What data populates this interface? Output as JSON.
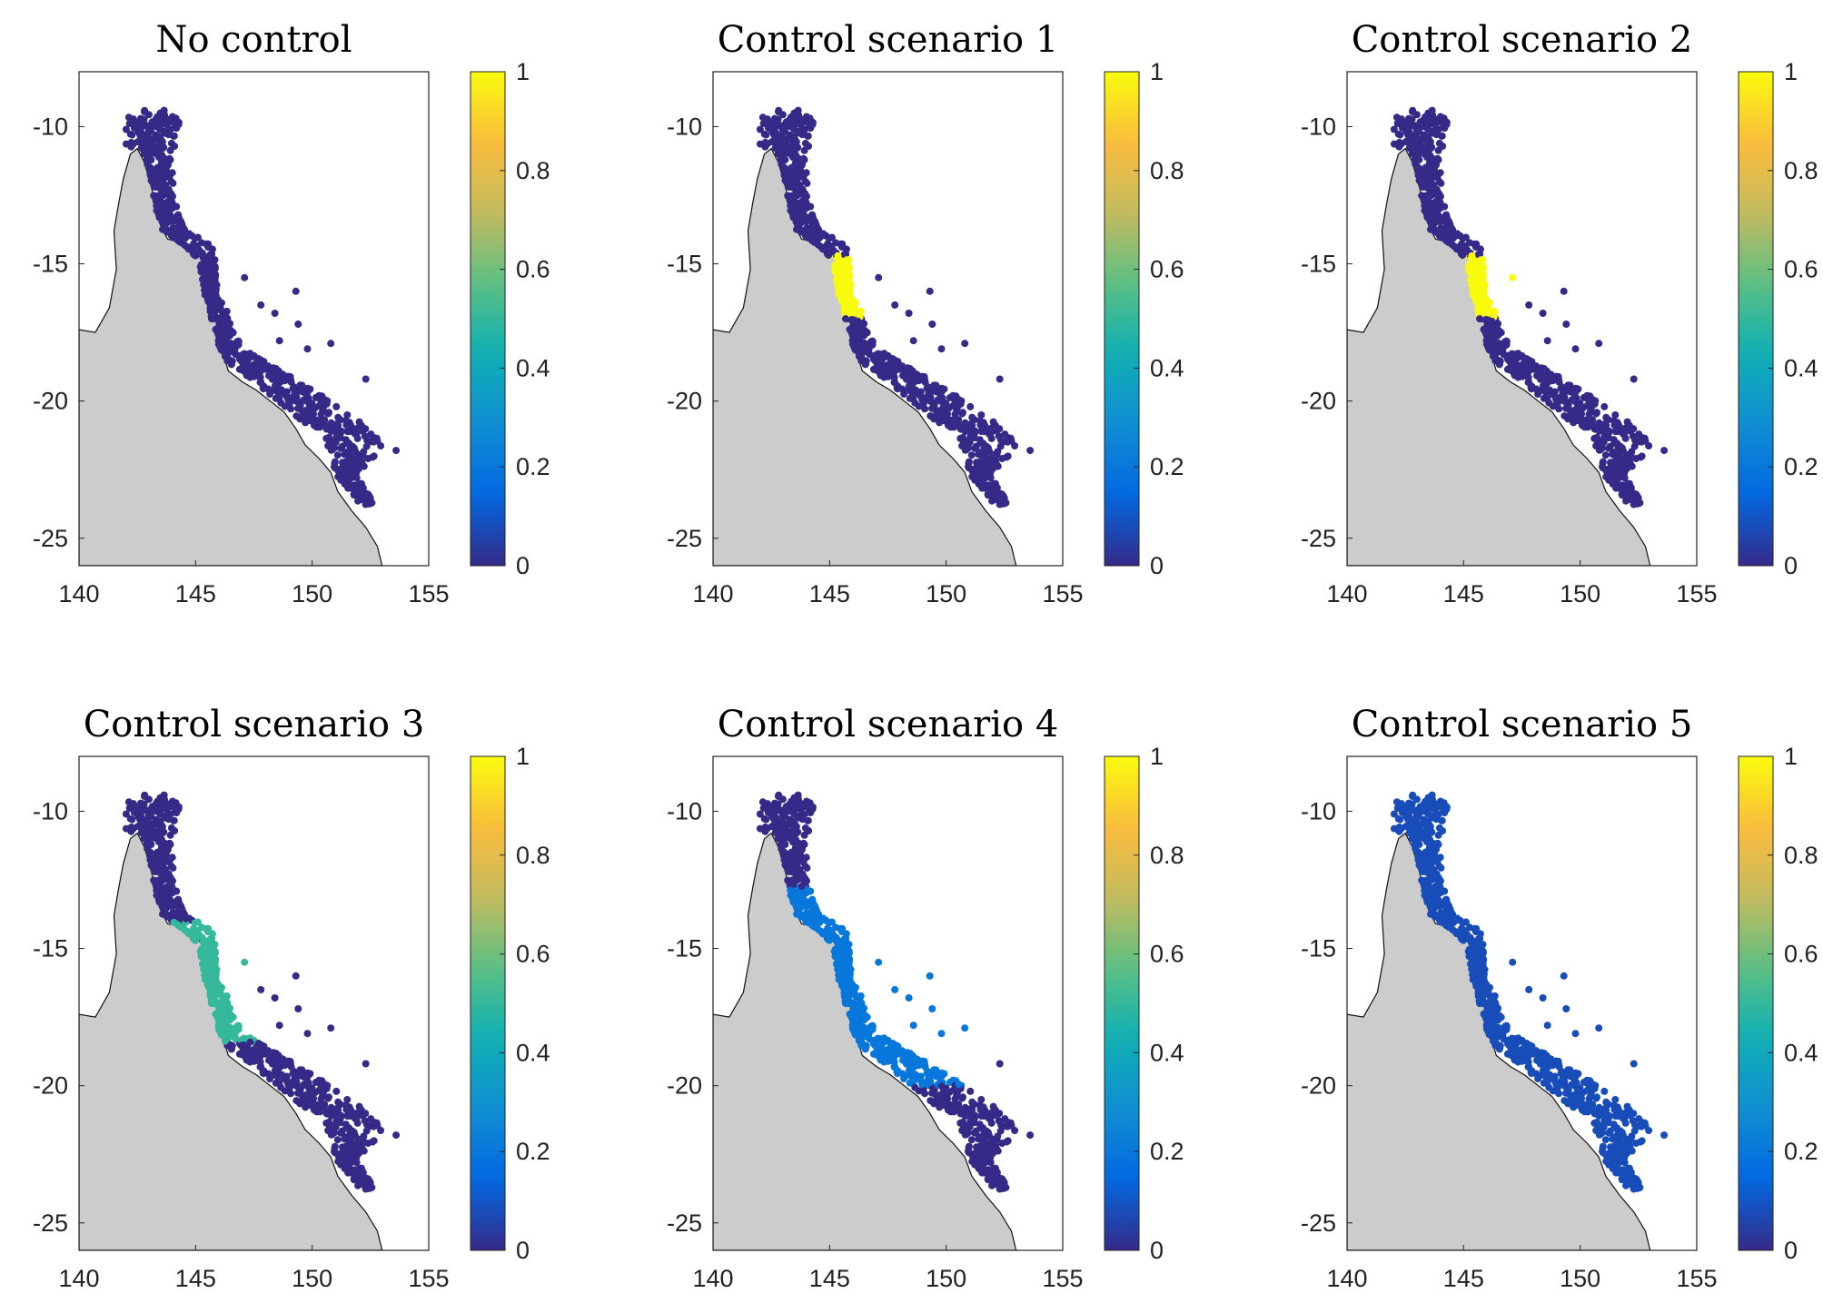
{
  "colormap": "parula",
  "colors": {
    "land": "#cccccc",
    "coastline": "#111111",
    "parula_stops": [
      "#352a87",
      "#0268e1",
      "#108ed2",
      "#0fb0b4",
      "#5bbf83",
      "#c4bb5e",
      "#fbbc3c",
      "#f9fb0e"
    ]
  },
  "chart_data": [
    {
      "type": "scatter",
      "title": "No control",
      "xlim": [
        140,
        155
      ],
      "ylim": [
        -26,
        -8
      ],
      "xticks": [
        "140",
        "145",
        "150",
        "155"
      ],
      "yticks": [
        "-10",
        "-15",
        "-20",
        "-25"
      ],
      "colorbar": {
        "range": [
          0,
          1
        ],
        "ticks": [
          "0",
          "0.2",
          "0.4",
          "0.6",
          "0.8",
          "1"
        ]
      },
      "highlight": null,
      "base_value": 0.0
    },
    {
      "type": "scatter",
      "title": "Control scenario 1",
      "xlim": [
        140,
        155
      ],
      "ylim": [
        -26,
        -8
      ],
      "xticks": [
        "140",
        "145",
        "150",
        "155"
      ],
      "yticks": [
        "-10",
        "-15",
        "-20",
        "-25"
      ],
      "colorbar": {
        "range": [
          0,
          1
        ],
        "ticks": [
          "0",
          "0.2",
          "0.4",
          "0.6",
          "0.8",
          "1"
        ]
      },
      "highlight": {
        "lat_range": [
          -17.0,
          -14.7
        ],
        "value": 1.0,
        "include_offshore_lat_above": null
      },
      "base_value": 0.0
    },
    {
      "type": "scatter",
      "title": "Control scenario 2",
      "xlim": [
        140,
        155
      ],
      "ylim": [
        -26,
        -8
      ],
      "xticks": [
        "140",
        "145",
        "150",
        "155"
      ],
      "yticks": [
        "-10",
        "-15",
        "-20",
        "-25"
      ],
      "colorbar": {
        "range": [
          0,
          1
        ],
        "ticks": [
          "0",
          "0.2",
          "0.4",
          "0.6",
          "0.8",
          "1"
        ]
      },
      "highlight": {
        "lat_range": [
          -17.0,
          -14.7
        ],
        "value": 1.0,
        "include_offshore_lat_above": -15.7
      },
      "base_value": 0.0
    },
    {
      "type": "scatter",
      "title": "Control scenario 3",
      "xlim": [
        140,
        155
      ],
      "ylim": [
        -26,
        -8
      ],
      "xticks": [
        "140",
        "145",
        "150",
        "155"
      ],
      "yticks": [
        "-10",
        "-15",
        "-20",
        "-25"
      ],
      "colorbar": {
        "range": [
          0,
          1
        ],
        "ticks": [
          "0",
          "0.2",
          "0.4",
          "0.6",
          "0.8",
          "1"
        ]
      },
      "highlight": {
        "lat_range": [
          -18.4,
          -14.0
        ],
        "value": 0.5,
        "include_offshore_lat_above": -15.7
      },
      "base_value": 0.0
    },
    {
      "type": "scatter",
      "title": "Control scenario 4",
      "xlim": [
        140,
        155
      ],
      "ylim": [
        -26,
        -8
      ],
      "xticks": [
        "140",
        "145",
        "150",
        "155"
      ],
      "yticks": [
        "-10",
        "-15",
        "-20",
        "-25"
      ],
      "colorbar": {
        "range": [
          0,
          1
        ],
        "ticks": [
          "0",
          "0.2",
          "0.4",
          "0.6",
          "0.8",
          "1"
        ]
      },
      "highlight": {
        "lat_range": [
          -20.0,
          -12.8
        ],
        "value": 0.2,
        "include_offshore_lat_above": -19.0
      },
      "base_value": 0.0
    },
    {
      "type": "scatter",
      "title": "Control scenario 5",
      "xlim": [
        140,
        155
      ],
      "ylim": [
        -26,
        -8
      ],
      "xticks": [
        "140",
        "145",
        "150",
        "155"
      ],
      "yticks": [
        "-10",
        "-15",
        "-20",
        "-25"
      ],
      "colorbar": {
        "range": [
          0,
          1
        ],
        "ticks": [
          "0",
          "0.2",
          "0.4",
          "0.6",
          "0.8",
          "1"
        ]
      },
      "highlight": null,
      "base_value": 0.08
    }
  ]
}
